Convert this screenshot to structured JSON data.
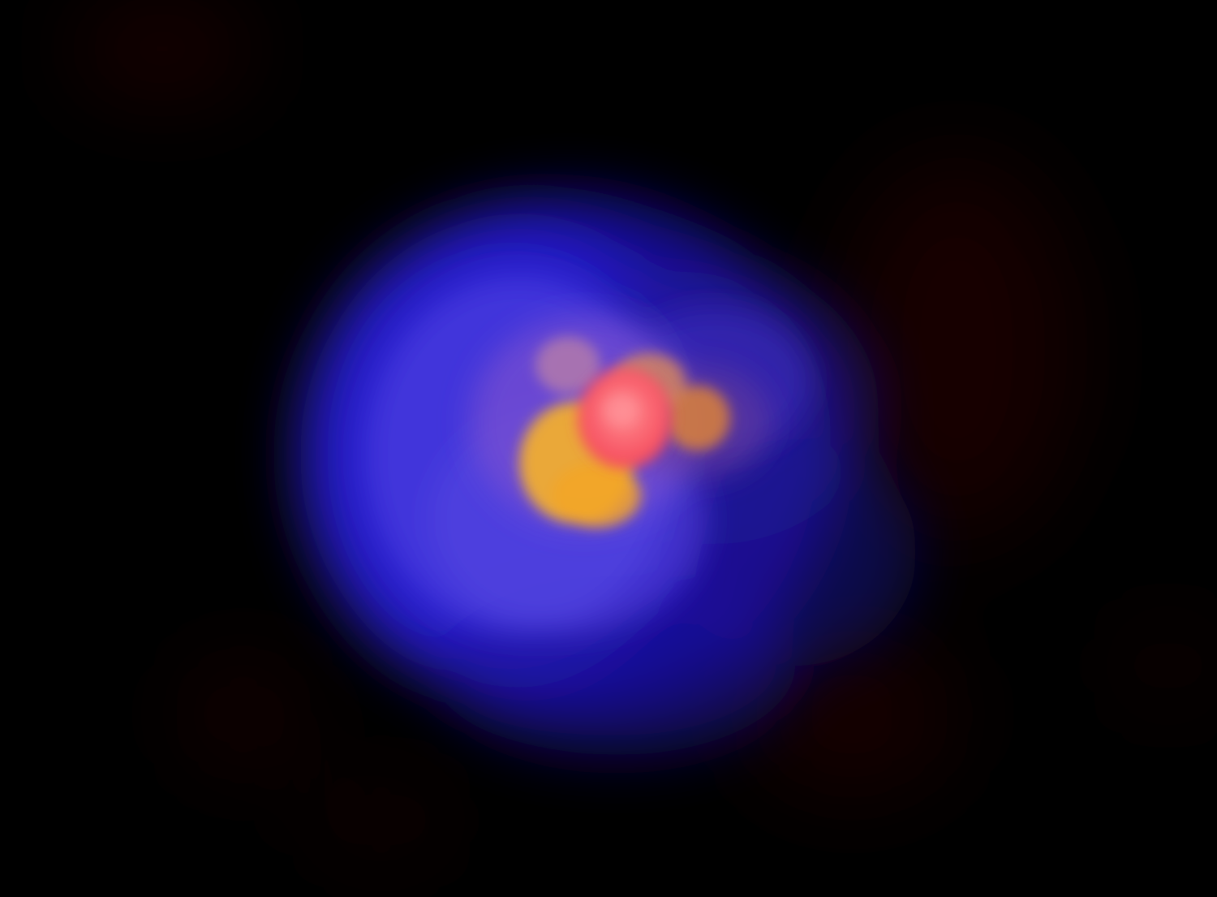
{
  "image": {
    "subject": "glowing-nebula",
    "background_color": "#000000",
    "colors": {
      "outer_glow": "#2a1fd6",
      "mid_glow": "#4a3fe0",
      "inner_haze": "#7a4fd0",
      "warm_ring": "#f7b12a",
      "core": "#f5485a",
      "core_highlight": "#ff8a8e",
      "faint_red_cloud": "#3a0505"
    }
  }
}
